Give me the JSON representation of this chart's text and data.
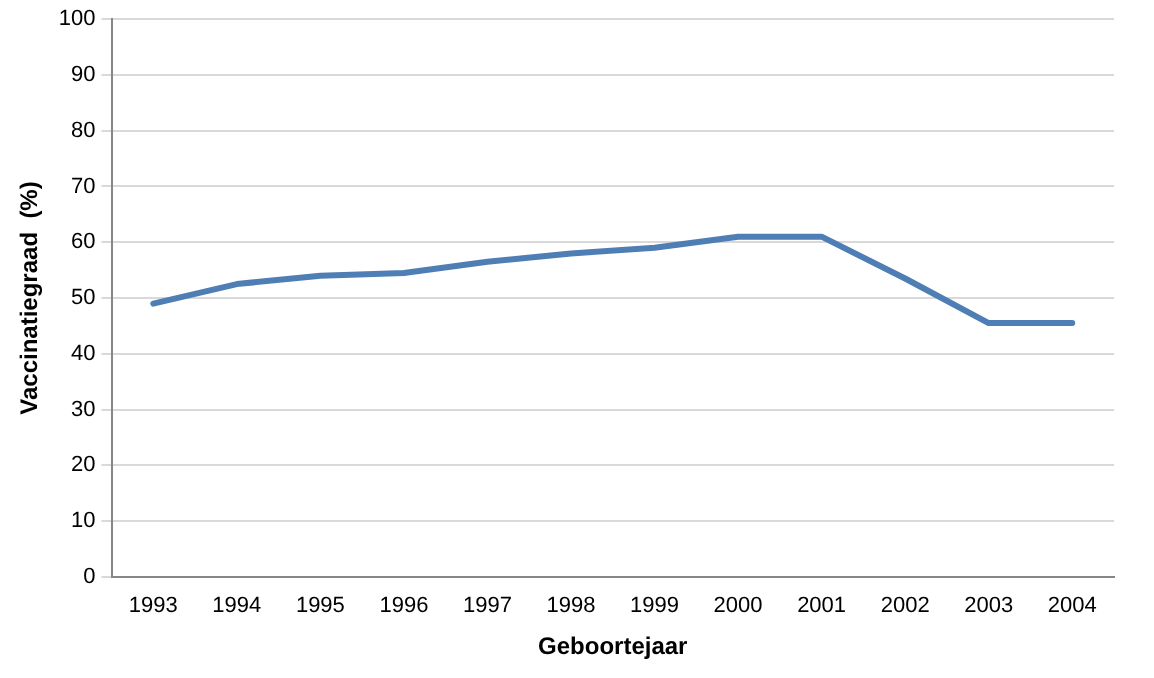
{
  "chart_data": {
    "type": "line",
    "xlabel": "Geboortejaar",
    "ylabel": "Vaccinatiegraad  (%)",
    "categories": [
      "1993",
      "1994",
      "1995",
      "1996",
      "1997",
      "1998",
      "1999",
      "2000",
      "2001",
      "2002",
      "2003",
      "2004"
    ],
    "series": [
      {
        "color": "#4f7eb5",
        "values": [
          49,
          52.5,
          54,
          54.5,
          56.5,
          58,
          59,
          61,
          61,
          53.5,
          45.5,
          45.5
        ]
      }
    ],
    "ylim": [
      0,
      100
    ],
    "yticks": [
      0,
      10,
      20,
      30,
      40,
      50,
      60,
      70,
      80,
      90,
      100
    ],
    "grid": "y",
    "legend": false,
    "marker": "none",
    "line_style": "solid"
  }
}
